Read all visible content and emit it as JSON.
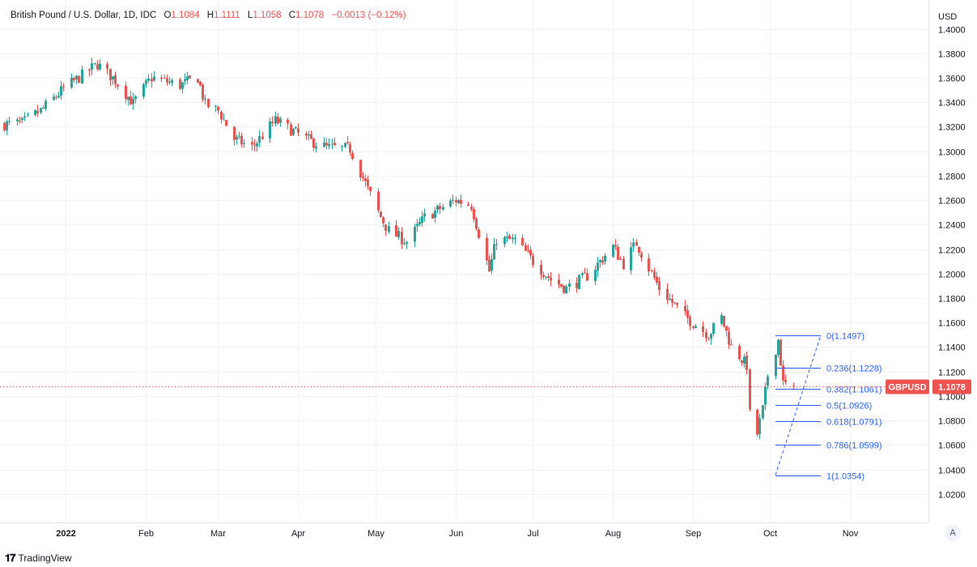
{
  "header": {
    "symbol": "British Pound / U.S. Dollar, 1D, IDC",
    "open_label": "O",
    "open": "1.1084",
    "high_label": "H",
    "high": "1.1111",
    "low_label": "L",
    "low": "1.1058",
    "close_label": "C",
    "close": "1.1078",
    "change": "−0.0013 (−0.12%)"
  },
  "currency": "USD",
  "scale_mode": "A",
  "footer": {
    "brand": "TradingView"
  },
  "colors": {
    "up": "#26a69a",
    "down": "#ef5350",
    "fib": "#2962ff",
    "grid": "#f0f3fa"
  },
  "chart_data": {
    "type": "candlestick",
    "title": "British Pound / U.S. Dollar, 1D, IDC",
    "y_ticks": [
      "1.4000",
      "1.3800",
      "1.3600",
      "1.3400",
      "1.3200",
      "1.3000",
      "1.2800",
      "1.2600",
      "1.2400",
      "1.2200",
      "1.2000",
      "1.1800",
      "1.1600",
      "1.1400",
      "1.1200",
      "1.1000",
      "1.0800",
      "1.0600",
      "1.0400",
      "1.0200"
    ],
    "x_ticks": [
      "2022",
      "Feb",
      "Mar",
      "Apr",
      "May",
      "Jun",
      "Jul",
      "Aug",
      "Sep",
      "Oct",
      "Nov"
    ],
    "ylim": [
      1.0,
      1.405
    ],
    "xlim": [
      "2021-12-08",
      "2022-11-23"
    ],
    "grid": true,
    "last_price": {
      "label": "GBPUSD",
      "value": "1.1078"
    },
    "fibonacci": {
      "high": 1.1497,
      "low": 1.0354,
      "levels": [
        {
          "ratio": "0",
          "price": 1.1497,
          "label": "0(1.1497)"
        },
        {
          "ratio": "0.236",
          "price": 1.1228,
          "label": "0.236(1.1228)"
        },
        {
          "ratio": "0.382",
          "price": 1.1061,
          "label": "0.382(1.1061)"
        },
        {
          "ratio": "0.5",
          "price": 1.0926,
          "label": "0.5(1.0926)"
        },
        {
          "ratio": "0.618",
          "price": 1.0791,
          "label": "0.618(1.0791)"
        },
        {
          "ratio": "0.786",
          "price": 1.0599,
          "label": "0.786(1.0599)"
        },
        {
          "ratio": "1",
          "price": 1.0354,
          "label": "1(1.0354)"
        }
      ]
    },
    "close_anchors": [
      [
        "2021-12-08",
        1.322
      ],
      [
        "2021-12-15",
        1.323
      ],
      [
        "2021-12-22",
        1.333
      ],
      [
        "2021-12-31",
        1.351
      ],
      [
        "2022-01-13",
        1.371
      ],
      [
        "2022-01-20",
        1.358
      ],
      [
        "2022-01-27",
        1.339
      ],
      [
        "2022-02-03",
        1.36
      ],
      [
        "2022-02-14",
        1.354
      ],
      [
        "2022-02-21",
        1.36
      ],
      [
        "2022-02-24",
        1.338
      ],
      [
        "2022-03-01",
        1.333
      ],
      [
        "2022-03-07",
        1.31
      ],
      [
        "2022-03-14",
        1.303
      ],
      [
        "2022-03-23",
        1.325
      ],
      [
        "2022-04-05",
        1.309
      ],
      [
        "2022-04-12",
        1.303
      ],
      [
        "2022-04-21",
        1.302
      ],
      [
        "2022-05-02",
        1.25
      ],
      [
        "2022-05-06",
        1.235
      ],
      [
        "2022-05-13",
        1.226
      ],
      [
        "2022-05-20",
        1.246
      ],
      [
        "2022-06-01",
        1.26
      ],
      [
        "2022-06-07",
        1.256
      ],
      [
        "2022-06-14",
        1.202
      ],
      [
        "2022-06-17",
        1.228
      ],
      [
        "2022-06-24",
        1.227
      ],
      [
        "2022-07-01",
        1.21
      ],
      [
        "2022-07-08",
        1.195
      ],
      [
        "2022-07-14",
        1.188
      ],
      [
        "2022-07-22",
        1.198
      ],
      [
        "2022-08-01",
        1.222
      ],
      [
        "2022-08-05",
        1.208
      ],
      [
        "2022-08-10",
        1.225
      ],
      [
        "2022-08-19",
        1.188
      ],
      [
        "2022-08-29",
        1.165
      ],
      [
        "2022-09-07",
        1.15
      ],
      [
        "2022-09-12",
        1.164
      ],
      [
        "2022-09-16",
        1.14
      ],
      [
        "2022-09-22",
        1.125
      ],
      [
        "2022-09-23",
        1.085
      ],
      [
        "2022-09-26",
        1.069
      ],
      [
        "2022-09-28",
        1.089
      ],
      [
        "2022-09-30",
        1.117
      ],
      [
        "2022-10-04",
        1.146
      ],
      [
        "2022-10-06",
        1.11
      ],
      [
        "2022-10-10",
        1.1078
      ]
    ]
  }
}
